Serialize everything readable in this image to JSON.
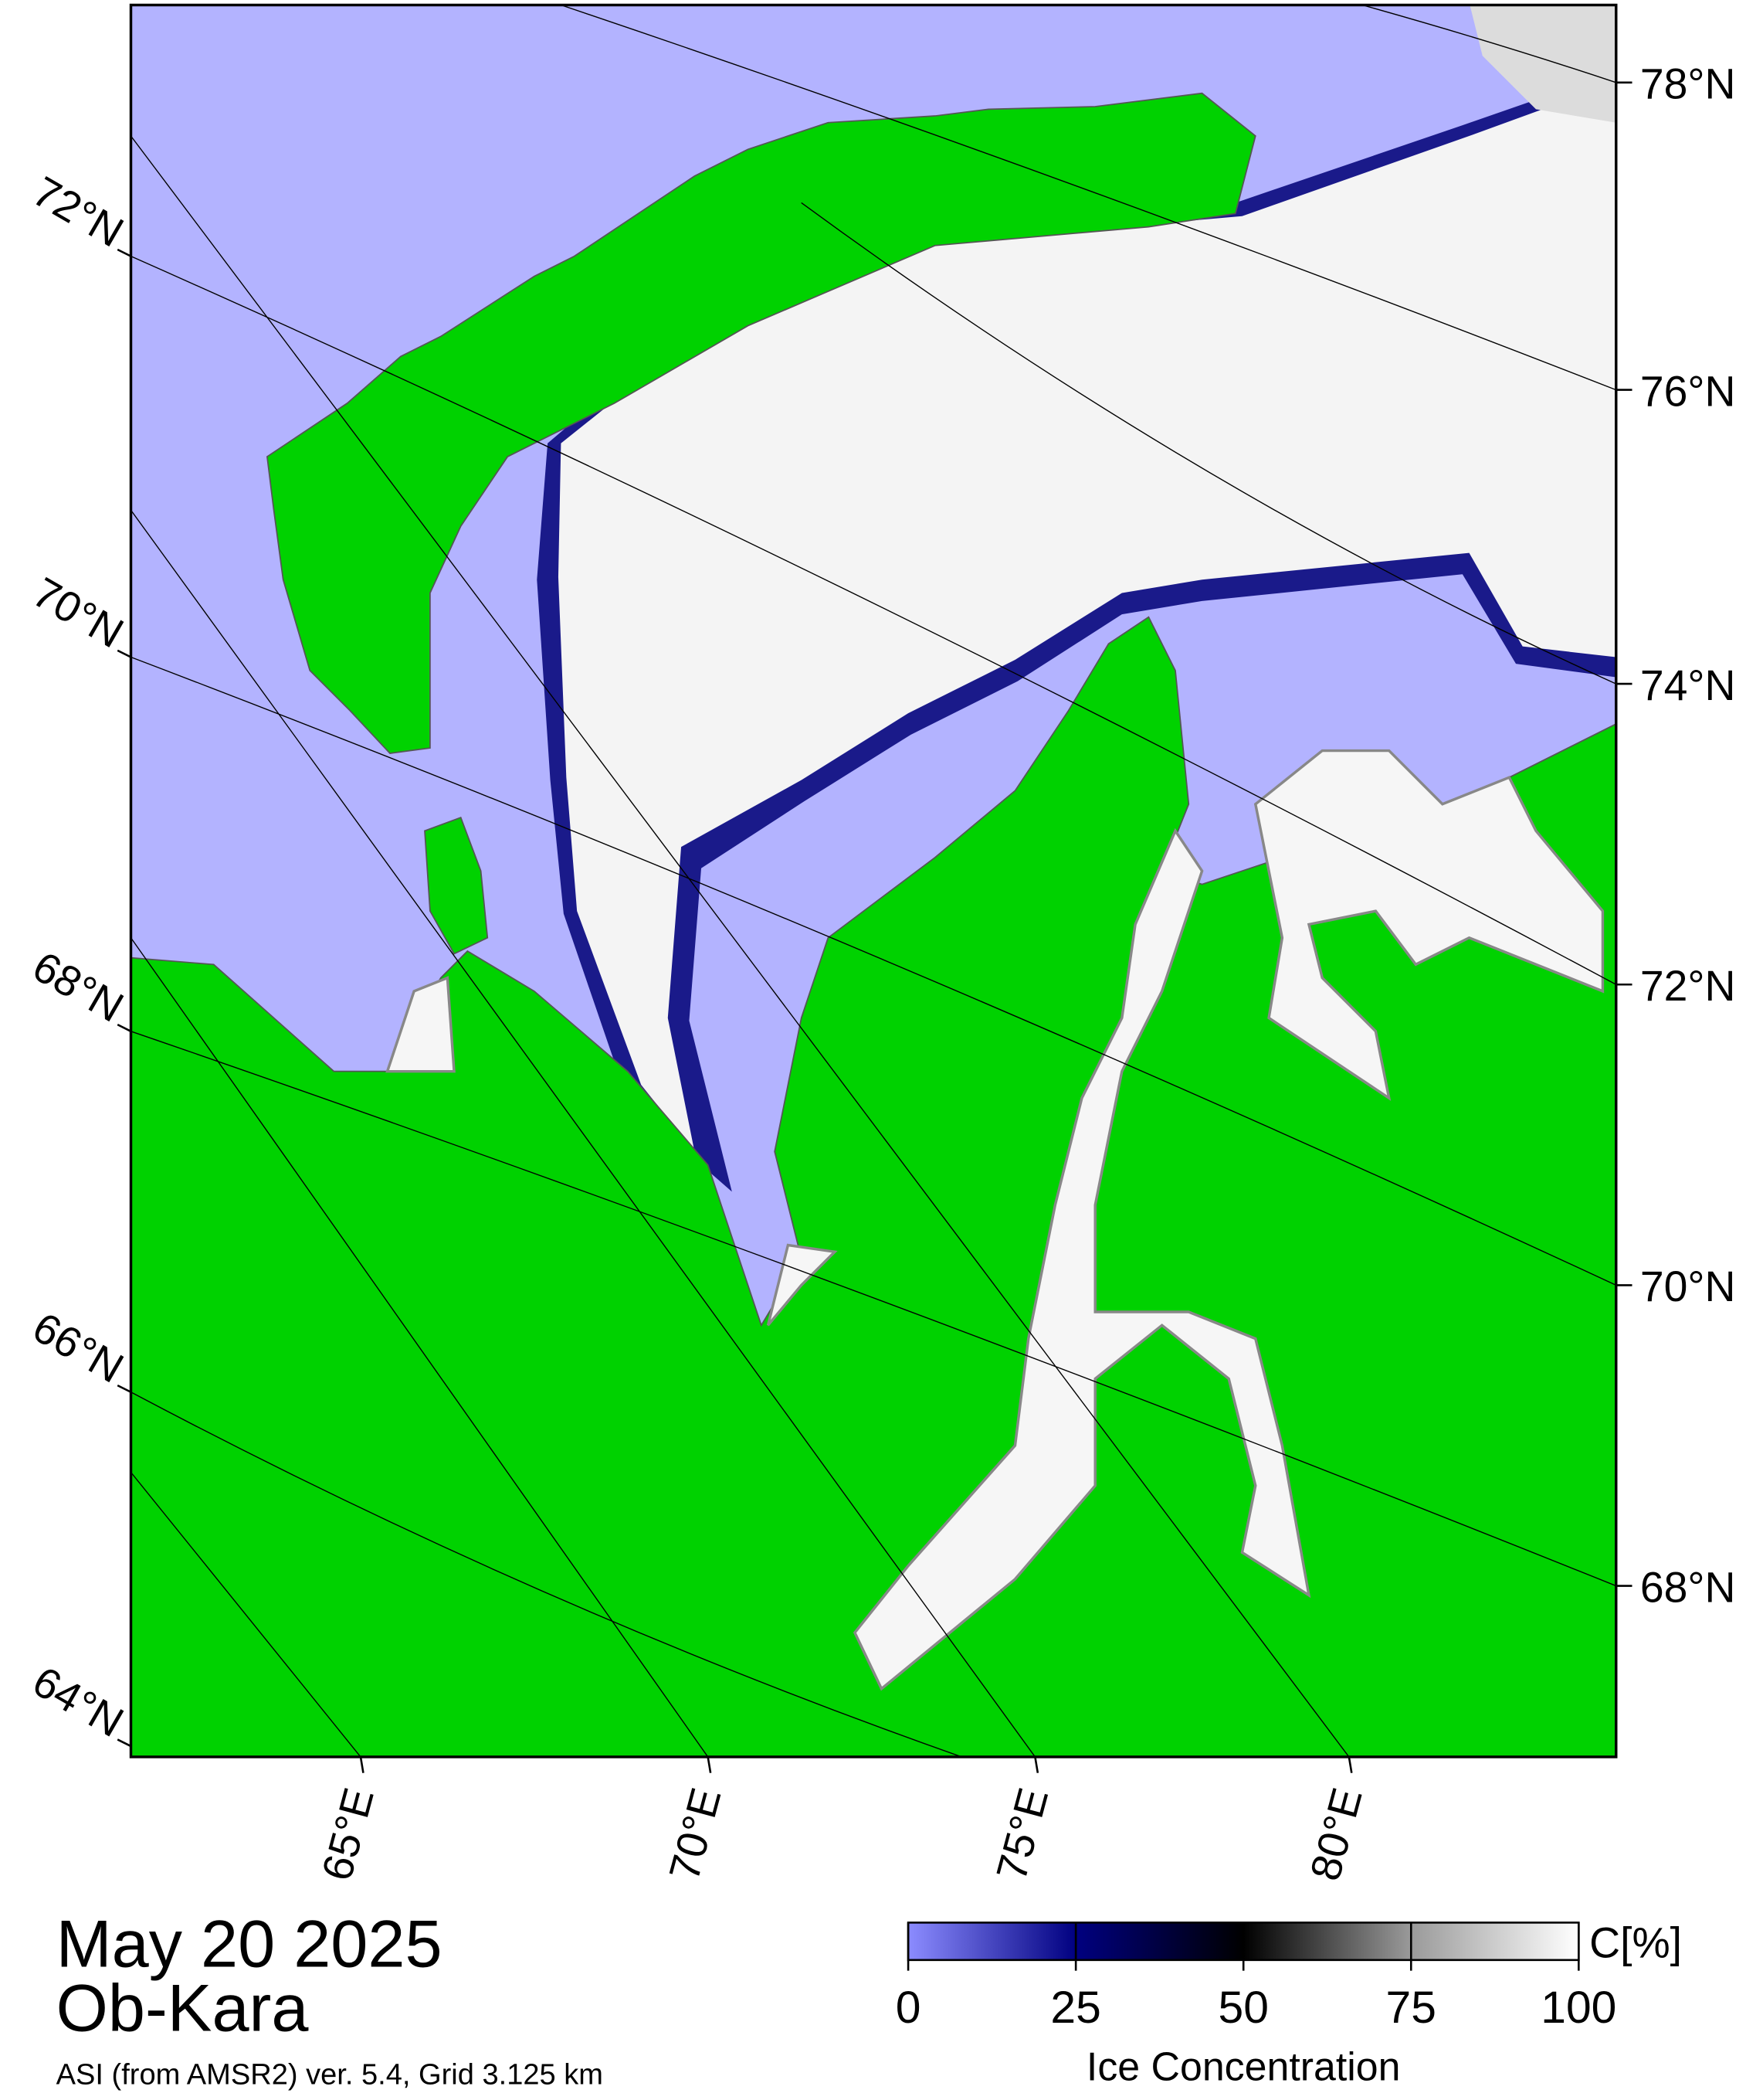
{
  "map": {
    "date": "May 20 2025",
    "region": "Ob-Kara",
    "source": "ASI (from AMSR2) ver. 5.4,  Grid 3.125 km",
    "lat_labels_left": [
      "72°N",
      "70°N",
      "68°N",
      "66°N",
      "64°N"
    ],
    "lat_labels_right": [
      "78°N",
      "76°N",
      "74°N",
      "72°N",
      "70°N",
      "68°N"
    ],
    "lon_labels": [
      "65°E",
      "70°E",
      "75°E",
      "80°E"
    ],
    "colorbar": {
      "unit": "C[%]",
      "label": "Ice Concentration",
      "lim": [
        0,
        100
      ],
      "ticks": [
        0,
        25,
        50,
        75,
        100
      ],
      "colors": [
        "#8c8cff",
        "#000080",
        "#000000",
        "#9a9a9a",
        "#ffffff"
      ]
    }
  }
}
